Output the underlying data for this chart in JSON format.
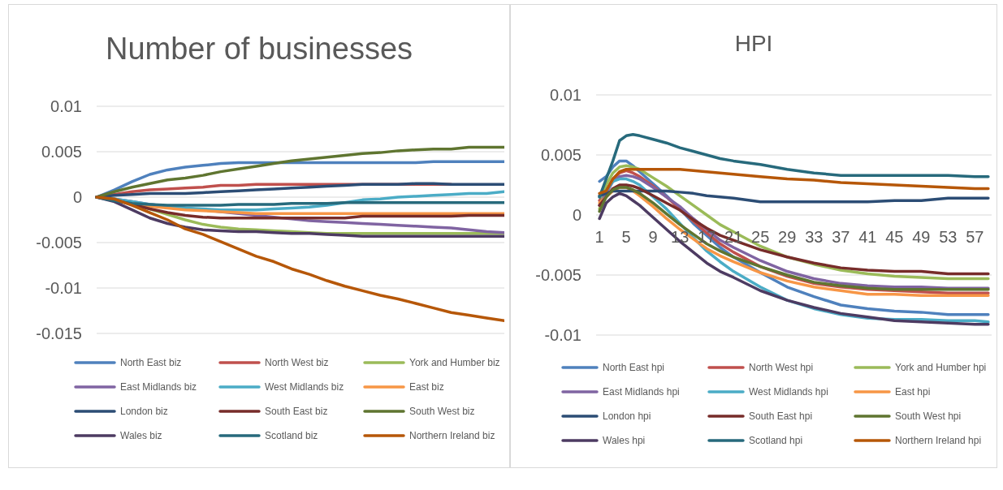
{
  "chart_data": [
    {
      "type": "line",
      "title": "Number of businesses",
      "categories": [
        null,
        null,
        null,
        null,
        null,
        null,
        null,
        null,
        null,
        null,
        null,
        null,
        null,
        null,
        null,
        null,
        null,
        null,
        null,
        null,
        null,
        null,
        null,
        null
      ],
      "ylim": [
        -0.015,
        0.01
      ],
      "yticks": [
        0.01,
        0.005,
        0,
        -0.005,
        -0.01,
        -0.015
      ],
      "grid": "y",
      "legend": "bottom",
      "tick_labels": "y",
      "series": [
        {
          "name": "North East biz",
          "color": "#4f81bd",
          "values": [
            0,
            0.0008,
            0.0017,
            0.0025,
            0.003,
            0.0033,
            0.0035,
            0.0037,
            0.0038,
            0.0038,
            0.0038,
            0.0038,
            0.0038,
            0.0038,
            0.0038,
            0.0038,
            0.0038,
            0.0038,
            0.0038,
            0.0039,
            0.0039,
            0.0039,
            0.0039,
            0.0039
          ]
        },
        {
          "name": "North West biz",
          "color": "#c0504d",
          "values": [
            0,
            0.0003,
            0.0006,
            0.0008,
            0.0009,
            0.001,
            0.0011,
            0.0013,
            0.0013,
            0.0014,
            0.0014,
            0.0014,
            0.0014,
            0.0014,
            0.0014,
            0.0014,
            0.0014,
            0.0014,
            0.0014,
            0.0014,
            0.0014,
            null,
            null,
            null
          ]
        },
        {
          "name": "York and Humber biz",
          "color": "#9bbb59",
          "values": [
            null,
            null,
            -0.0008,
            -0.0013,
            -0.0019,
            -0.0025,
            -0.003,
            -0.0033,
            -0.0035,
            -0.0036,
            -0.0037,
            -0.0038,
            -0.0039,
            -0.004,
            -0.004,
            -0.004,
            -0.004,
            -0.004,
            -0.004,
            -0.004,
            -0.004,
            -0.004,
            -0.004,
            -0.004
          ]
        },
        {
          "name": "East Midlands biz",
          "color": "#8064a2",
          "values": [
            0,
            -0.0002,
            -0.0005,
            -0.0008,
            -0.001,
            -0.0012,
            -0.0014,
            -0.0016,
            -0.0018,
            -0.002,
            -0.0022,
            -0.0024,
            -0.0026,
            -0.0027,
            -0.0028,
            -0.0029,
            -0.003,
            -0.0031,
            -0.0032,
            -0.0033,
            -0.0034,
            -0.0036,
            -0.0038,
            -0.0039
          ]
        },
        {
          "name": "West Midlands biz",
          "color": "#4bacc6",
          "values": [
            0,
            -0.0002,
            -0.0005,
            -0.0008,
            -0.001,
            -0.0012,
            -0.0013,
            -0.0014,
            -0.0014,
            -0.0014,
            -0.0013,
            -0.0012,
            -0.0011,
            -0.0009,
            -0.0006,
            -0.0003,
            -0.0002,
            0,
            0.0001,
            0.0002,
            0.0003,
            0.0004,
            0.0004,
            0.0006
          ]
        },
        {
          "name": "East biz",
          "color": "#f79646",
          "values": [
            null,
            null,
            -0.0007,
            -0.001,
            -0.0012,
            -0.0014,
            -0.0015,
            -0.0016,
            -0.0017,
            -0.0018,
            -0.0018,
            -0.0018,
            -0.0018,
            -0.0018,
            -0.0018,
            -0.0018,
            -0.0018,
            -0.0018,
            -0.0018,
            -0.0018,
            -0.0018,
            -0.0018,
            -0.0018,
            -0.0018
          ]
        },
        {
          "name": "London biz",
          "color": "#2c4d75",
          "values": [
            0,
            0.0002,
            0.0003,
            0.0004,
            0.0004,
            0.0004,
            0.0005,
            0.0006,
            0.0007,
            0.0008,
            0.0009,
            0.001,
            0.0011,
            0.0012,
            0.0013,
            0.0014,
            0.0014,
            0.0014,
            0.0015,
            0.0015,
            0.0014,
            0.0014,
            0.0014,
            0.0014
          ]
        },
        {
          "name": "South East biz",
          "color": "#772c2a",
          "values": [
            0,
            -0.0003,
            -0.0008,
            -0.0013,
            -0.0017,
            -0.002,
            -0.0022,
            -0.0023,
            -0.0023,
            -0.0023,
            -0.0023,
            -0.0023,
            -0.0023,
            -0.0023,
            -0.0023,
            -0.0021,
            -0.0021,
            -0.0021,
            -0.0021,
            -0.0021,
            -0.0021,
            -0.002,
            -0.002,
            -0.002
          ]
        },
        {
          "name": "South West biz",
          "color": "#5f7530",
          "values": [
            0,
            0.0006,
            0.0011,
            0.0015,
            0.0019,
            0.0021,
            0.0024,
            0.0028,
            0.0031,
            0.0034,
            0.0037,
            0.004,
            0.0042,
            0.0044,
            0.0046,
            0.0048,
            0.0049,
            0.0051,
            0.0052,
            0.0053,
            0.0053,
            0.0055,
            0.0055,
            0.0055
          ]
        },
        {
          "name": "Wales biz",
          "color": "#4d3b62",
          "values": [
            0,
            -0.0005,
            -0.0014,
            -0.0023,
            -0.0029,
            -0.0033,
            -0.0036,
            -0.0037,
            -0.0038,
            -0.0038,
            -0.0039,
            -0.004,
            -0.004,
            -0.0041,
            -0.0042,
            -0.0043,
            -0.0043,
            -0.0043,
            -0.0043,
            -0.0043,
            -0.0043,
            -0.0043,
            -0.0043,
            -0.0043
          ]
        },
        {
          "name": "Scotland biz",
          "color": "#276a7c",
          "values": [
            0,
            -0.0004,
            -0.0007,
            -0.0008,
            -0.0009,
            -0.0009,
            -0.0009,
            -0.0009,
            -0.0008,
            -0.0008,
            -0.0008,
            -0.0007,
            -0.0007,
            -0.0007,
            -0.0006,
            -0.0006,
            -0.0006,
            -0.0006,
            -0.0006,
            -0.0006,
            -0.0006,
            -0.0006,
            -0.0006,
            -0.0006
          ]
        },
        {
          "name": "Northern Ireland biz",
          "color": "#b65708",
          "values": [
            0,
            -0.0002,
            -0.0009,
            -0.0017,
            -0.0025,
            -0.0035,
            -0.0041,
            -0.0049,
            -0.0057,
            -0.0065,
            -0.0071,
            -0.0079,
            -0.0085,
            -0.0092,
            -0.0098,
            -0.0103,
            -0.0108,
            -0.0112,
            -0.0117,
            -0.0122,
            -0.0127,
            -0.013,
            -0.0133,
            -0.0136
          ]
        }
      ]
    },
    {
      "type": "line",
      "title": "HPI",
      "x": [
        1,
        2,
        3,
        4,
        5,
        6,
        7,
        9,
        11,
        13,
        15,
        17,
        19,
        21,
        25,
        29,
        33,
        37,
        41,
        45,
        49,
        53,
        57,
        59
      ],
      "xlim": [
        0.5,
        59.5
      ],
      "xticks": [
        1,
        5,
        9,
        13,
        17,
        21,
        25,
        29,
        33,
        37,
        41,
        45,
        49,
        53,
        57
      ],
      "ylim": [
        -0.01,
        0.01
      ],
      "yticks": [
        0.01,
        0.005,
        0,
        -0.005,
        -0.01
      ],
      "grid": "y",
      "legend": "bottom",
      "series": [
        {
          "name": "North East hpi",
          "color": "#4f81bd",
          "values": [
            0.0028,
            0.0032,
            0.004,
            0.0045,
            0.0045,
            0.0041,
            0.0036,
            0.0026,
            0.0016,
            0.0005,
            -0.0007,
            -0.0017,
            -0.0027,
            -0.0035,
            -0.0048,
            -0.006,
            -0.0068,
            -0.0075,
            -0.0078,
            -0.008,
            -0.0081,
            -0.0083,
            -0.0083,
            -0.0083
          ]
        },
        {
          "name": "North West hpi",
          "color": "#c0504d",
          "values": [
            0.0012,
            0.002,
            0.003,
            0.0035,
            0.0037,
            0.0035,
            0.0032,
            0.0024,
            0.0015,
            0.0005,
            -0.0005,
            -0.0015,
            -0.0024,
            -0.0031,
            -0.0043,
            -0.0051,
            -0.0057,
            -0.006,
            -0.0062,
            -0.0063,
            -0.0064,
            -0.0065,
            -0.0065,
            -0.0065
          ]
        },
        {
          "name": "York and Humber hpi",
          "color": "#9bbb59",
          "values": [
            0.0005,
            0.0025,
            0.0035,
            0.004,
            0.0041,
            0.004,
            0.0038,
            0.0031,
            0.0024,
            0.0016,
            0.0008,
            0,
            -0.0008,
            -0.0014,
            -0.0026,
            -0.0035,
            -0.0041,
            -0.0046,
            -0.0049,
            -0.0051,
            -0.0052,
            -0.0053,
            -0.0053,
            -0.0053
          ]
        },
        {
          "name": "East Midlands hpi",
          "color": "#8064a2",
          "values": [
            0.0008,
            0.0018,
            0.0028,
            0.0032,
            0.0033,
            0.0032,
            0.003,
            0.0023,
            0.0015,
            0.0007,
            -0.0003,
            -0.0012,
            -0.0021,
            -0.0027,
            -0.0038,
            -0.0047,
            -0.0053,
            -0.0057,
            -0.0059,
            -0.006,
            -0.006,
            -0.0061,
            -0.0061,
            -0.0061
          ]
        },
        {
          "name": "West Midlands hpi",
          "color": "#4bacc6",
          "values": [
            0.0015,
            0.002,
            0.0028,
            0.003,
            0.003,
            0.0028,
            0.0025,
            0.0015,
            0.0005,
            -0.0007,
            -0.0019,
            -0.003,
            -0.0039,
            -0.0047,
            -0.006,
            -0.0071,
            -0.0078,
            -0.0083,
            -0.0086,
            -0.0087,
            -0.0087,
            -0.0088,
            -0.0088,
            -0.0089
          ]
        },
        {
          "name": "East hpi",
          "color": "#f79646",
          "values": [
            0.001,
            0.0015,
            0.002,
            0.0023,
            0.0023,
            0.002,
            0.0016,
            0.0007,
            -0.0003,
            -0.0012,
            -0.002,
            -0.0028,
            -0.0034,
            -0.0039,
            -0.0048,
            -0.0055,
            -0.006,
            -0.0063,
            -0.0066,
            -0.0066,
            -0.0067,
            -0.0067,
            -0.0067,
            -0.0067
          ]
        },
        {
          "name": "London hpi",
          "color": "#2c4d75",
          "values": [
            0.0016,
            0.0018,
            0.002,
            0.002,
            0.002,
            0.002,
            0.002,
            0.002,
            0.002,
            0.0019,
            0.0018,
            0.0016,
            0.0015,
            0.0014,
            0.0011,
            0.0011,
            0.0011,
            0.0011,
            0.0011,
            0.0012,
            0.0012,
            0.0014,
            0.0014,
            0.0014
          ]
        },
        {
          "name": "South East hpi",
          "color": "#772c2a",
          "values": [
            0.0008,
            0.0015,
            0.0022,
            0.0025,
            0.0025,
            0.0024,
            0.0022,
            0.0016,
            0.001,
            0.0004,
            -0.0004,
            -0.0011,
            -0.0017,
            -0.0021,
            -0.0029,
            -0.0035,
            -0.004,
            -0.0044,
            -0.0046,
            -0.0047,
            -0.0047,
            -0.0049,
            -0.0049,
            -0.0049
          ]
        },
        {
          "name": "South West hpi",
          "color": "#5f7530",
          "values": [
            0.0003,
            0.0015,
            0.0021,
            0.0023,
            0.0023,
            0.0021,
            0.0018,
            0.001,
            0.0001,
            -0.0008,
            -0.0016,
            -0.0024,
            -0.003,
            -0.0035,
            -0.0043,
            -0.005,
            -0.0056,
            -0.0059,
            -0.0061,
            -0.0062,
            -0.0062,
            -0.0062,
            -0.0062,
            -0.0062
          ]
        },
        {
          "name": "Wales hpi",
          "color": "#4d3b62",
          "values": [
            -0.0003,
            0.001,
            0.0015,
            0.0018,
            0.0016,
            0.0012,
            0.0008,
            -0.0002,
            -0.0012,
            -0.0022,
            -0.0031,
            -0.004,
            -0.0047,
            -0.0052,
            -0.0063,
            -0.0071,
            -0.0077,
            -0.0082,
            -0.0085,
            -0.0088,
            -0.0089,
            -0.009,
            -0.0091,
            -0.0091
          ]
        },
        {
          "name": "Scotland hpi",
          "color": "#276a7c",
          "values": [
            0.0015,
            0.003,
            0.0045,
            0.0062,
            0.0066,
            0.0067,
            0.0066,
            0.0063,
            0.006,
            0.0056,
            0.0053,
            0.005,
            0.0047,
            0.0045,
            0.0042,
            0.0038,
            0.0035,
            0.0033,
            0.0033,
            0.0033,
            0.0033,
            0.0033,
            0.0032,
            0.0032
          ]
        },
        {
          "name": "Northern Ireland hpi",
          "color": "#b65708",
          "values": [
            0.0018,
            0.002,
            0.003,
            0.0036,
            0.0038,
            0.0038,
            0.0038,
            0.0038,
            0.0038,
            0.0038,
            0.0037,
            0.0036,
            0.0035,
            0.0034,
            0.0032,
            0.003,
            0.0029,
            0.0027,
            0.0026,
            0.0025,
            0.0024,
            0.0023,
            0.0022,
            0.0022
          ]
        }
      ]
    }
  ]
}
